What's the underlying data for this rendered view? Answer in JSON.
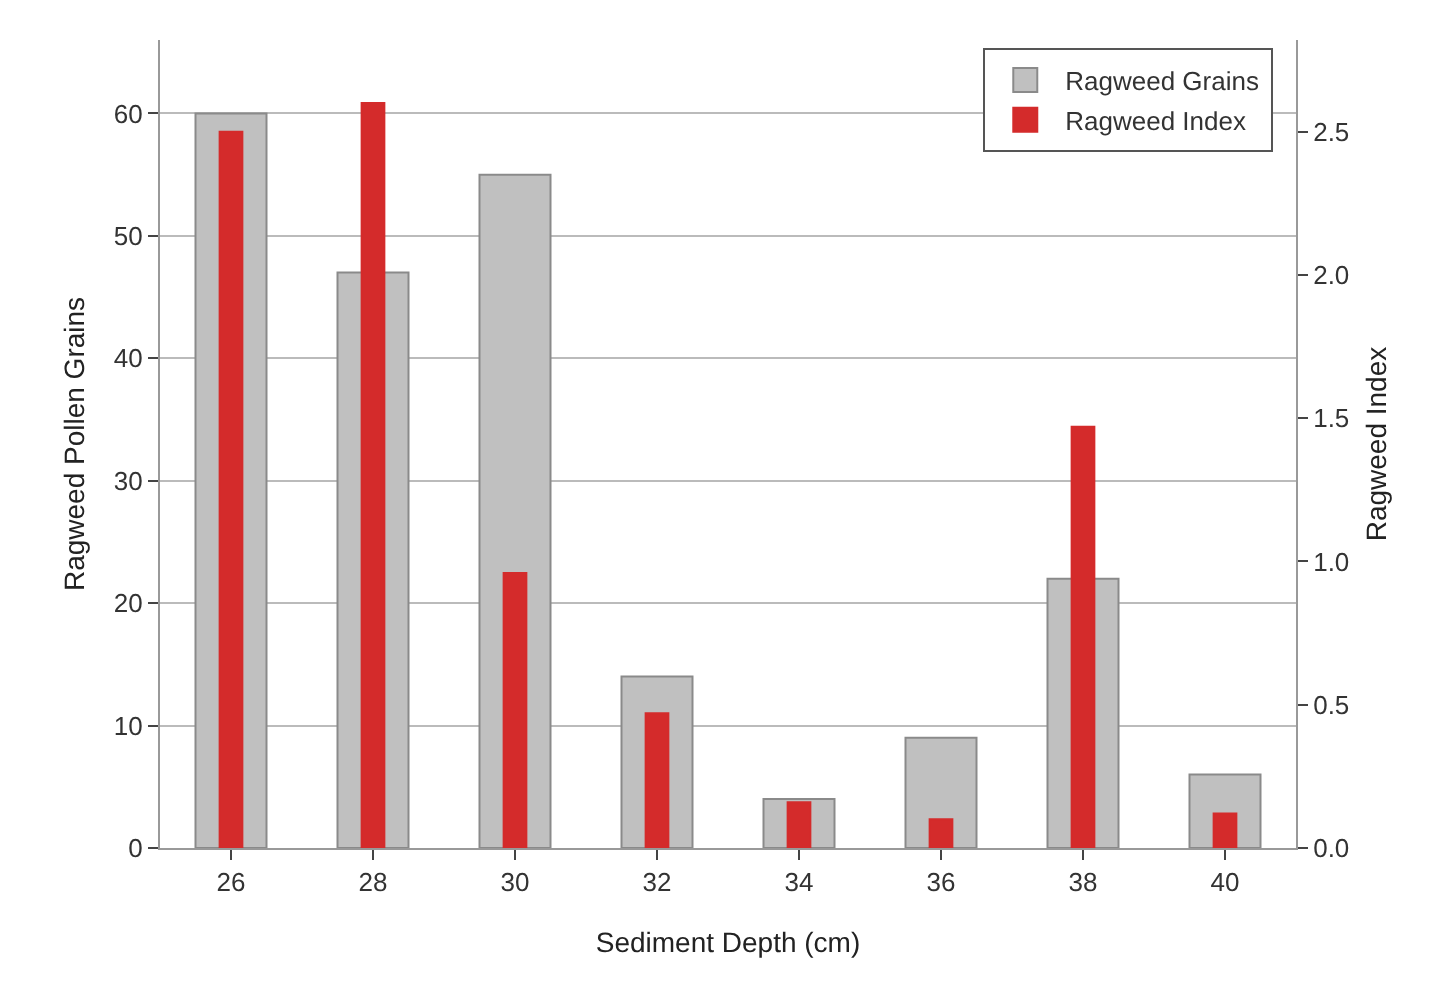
{
  "chart_data": {
    "type": "bar",
    "xlabel": "Sediment Depth (cm)",
    "ylabel": "Ragweed Pollen Grains",
    "y2label": "Ragweed Index",
    "categories": [
      "26",
      "28",
      "30",
      "32",
      "34",
      "36",
      "38",
      "40"
    ],
    "series": [
      {
        "name": "Ragweed Grains",
        "color": "#c0c0c0",
        "values": [
          60,
          47,
          55,
          14,
          4,
          9,
          22,
          6
        ]
      },
      {
        "name": "Ragweed Index",
        "color": "#d42b2b",
        "axis": "y2",
        "values": [
          2.5,
          2.6,
          0.96,
          0.47,
          0.16,
          0.1,
          1.47,
          0.12
        ]
      }
    ],
    "ylim": [
      0,
      66
    ],
    "yticks": [
      0,
      10,
      20,
      30,
      40,
      50,
      60
    ],
    "y2lim": [
      0,
      2.82
    ],
    "y2ticks": [
      {
        "value": 0,
        "label": "0.0"
      },
      {
        "value": 0.5,
        "label": "0.5"
      },
      {
        "value": 1,
        "label": "1.0"
      },
      {
        "value": 1.5,
        "label": "1.5"
      },
      {
        "value": 2,
        "label": "2.0"
      },
      {
        "value": 2.5,
        "label": "2.5"
      }
    ],
    "grid": "y",
    "legend": "top right"
  }
}
